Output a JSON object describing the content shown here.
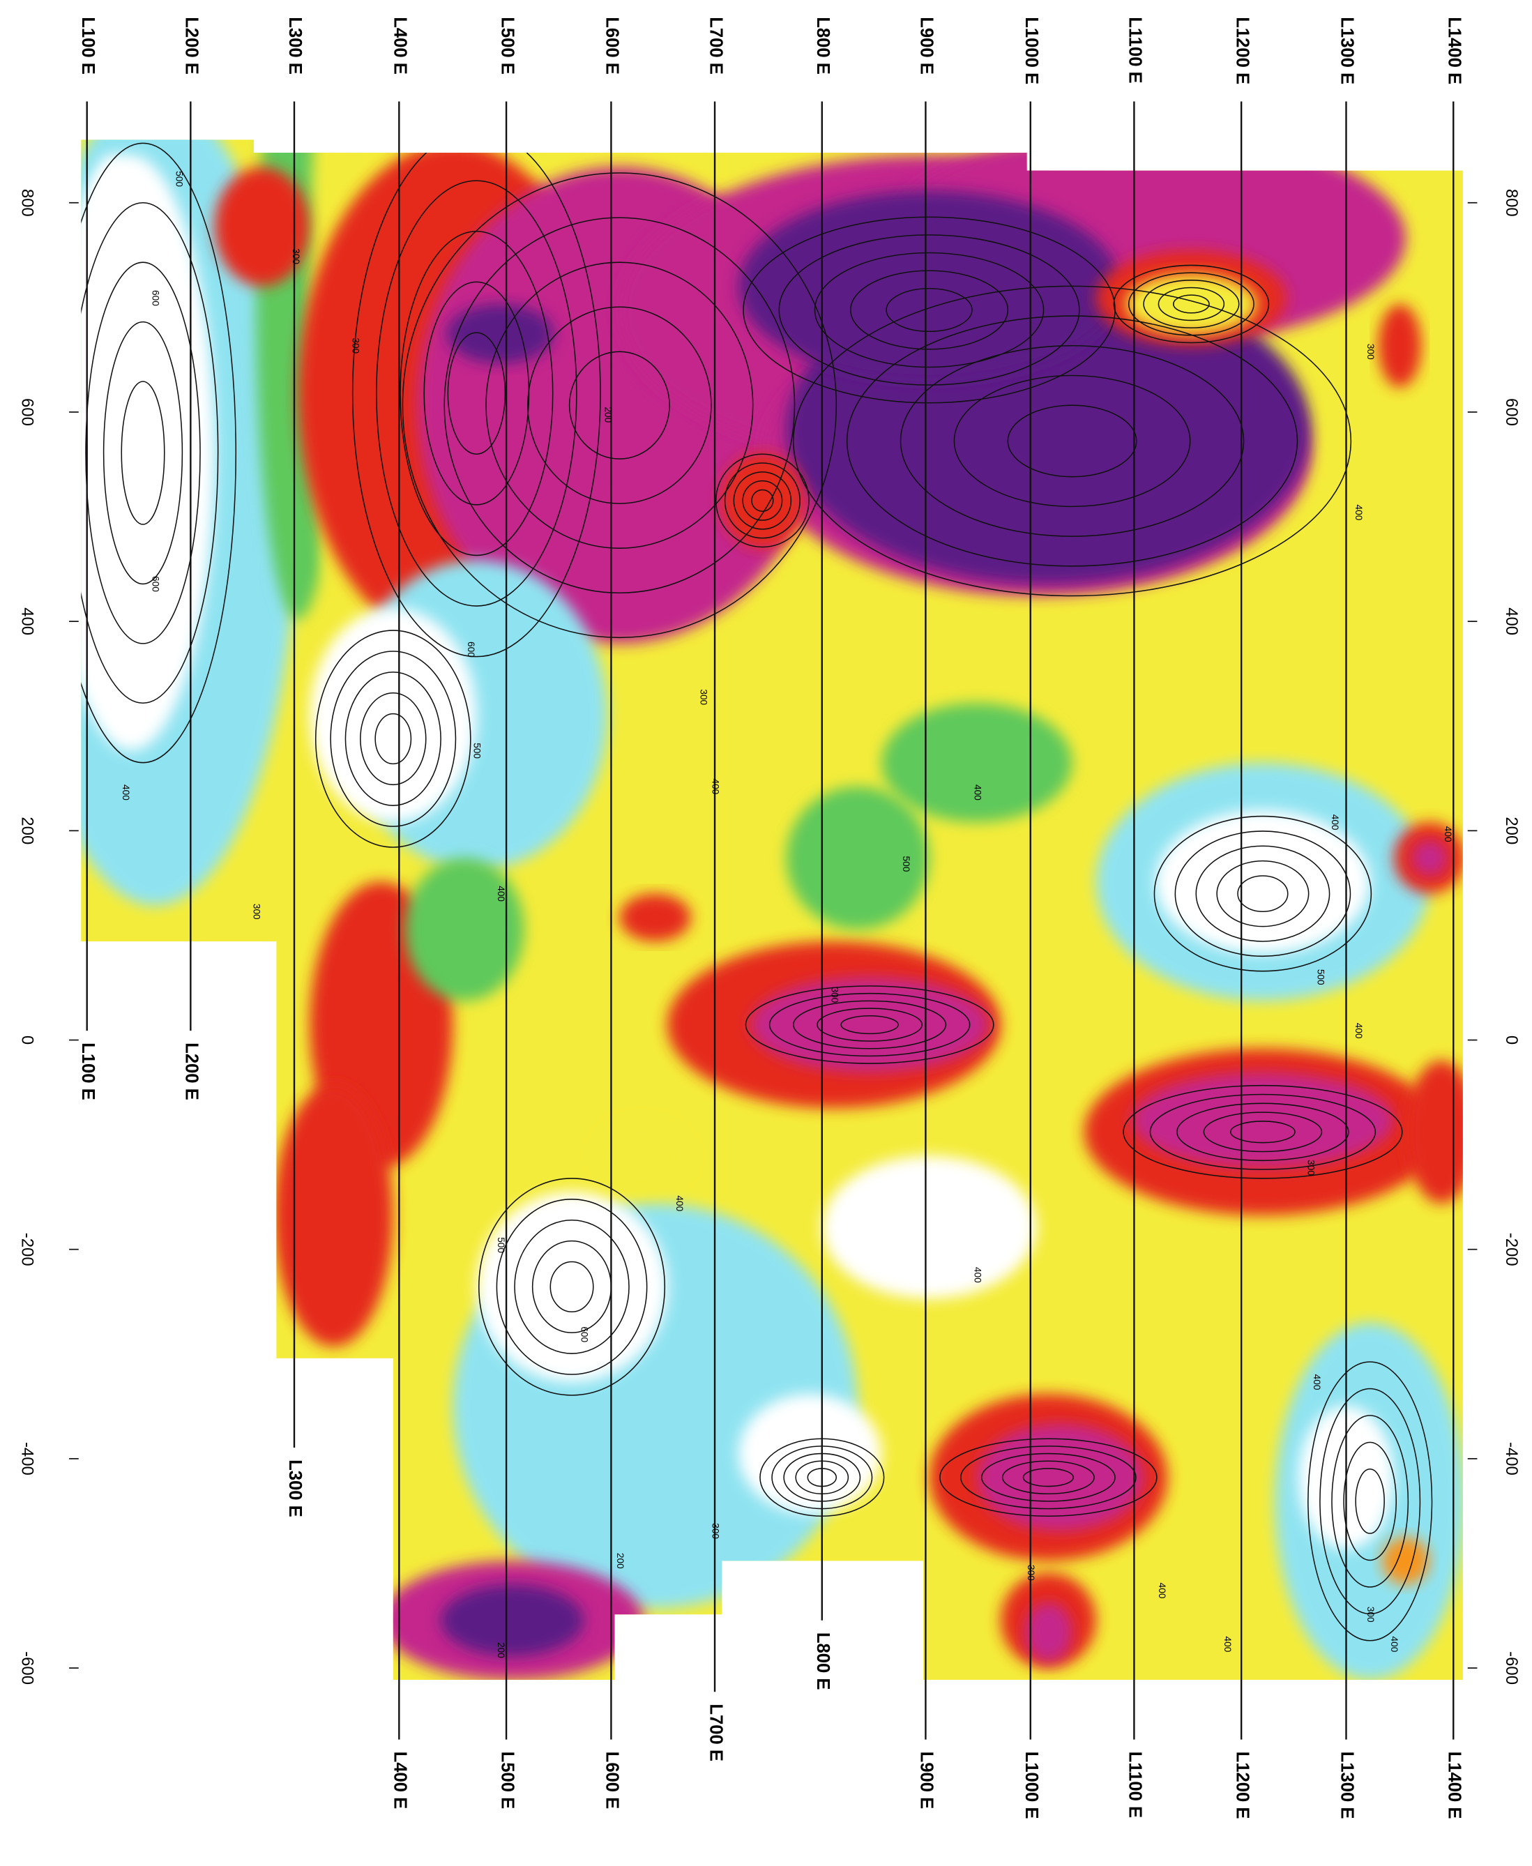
{
  "map": {
    "line_labels_top": [
      "L100 E",
      "L200 E",
      "L300 E",
      "L400 E",
      "L500 E",
      "L600 E",
      "L700 E",
      "L800 E",
      "L900 E",
      "L1000 E",
      "L1100 E",
      "L1200 E",
      "L1300 E",
      "L1400 E"
    ],
    "line_labels_bottom": [
      "L100 E",
      "L200 E",
      "L300 E",
      "L400 E",
      "L500 E",
      "L600 E",
      "L700 E",
      "L800 E",
      "L900 E",
      "L1000 E",
      "L1100 E",
      "L1200 E",
      "L1300 E",
      "L1400 E"
    ],
    "yticks": [
      800,
      600,
      400,
      200,
      0,
      -200,
      -400,
      -600
    ],
    "ylim": [
      -600,
      800
    ],
    "contour_labels": [
      "500",
      "600",
      "600",
      "300",
      "300",
      "200",
      "400",
      "400",
      "400",
      "500",
      "600",
      "300",
      "400",
      "500",
      "400",
      "300",
      "300",
      "400",
      "600",
      "500",
      "400",
      "300",
      "200",
      "200",
      "400",
      "400",
      "300",
      "400",
      "400",
      "300",
      "500",
      "400",
      "300",
      "400",
      "400",
      "300"
    ]
  }
}
